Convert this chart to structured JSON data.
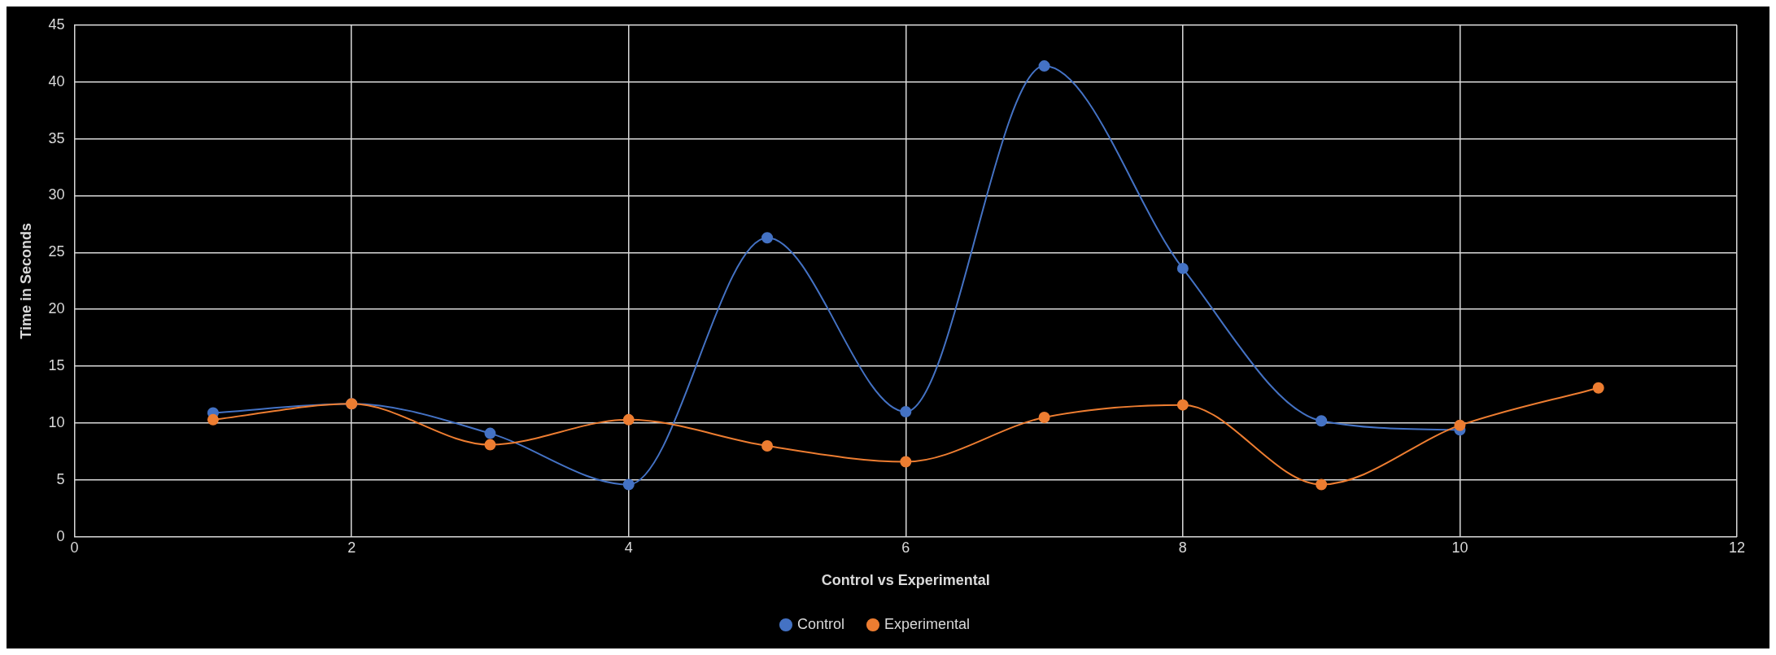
{
  "chart_data": {
    "type": "line",
    "xlabel": "Control vs Experimental",
    "ylabel": "Time in Seconds",
    "x": [
      1,
      2,
      3,
      4,
      5,
      6,
      7,
      8,
      9,
      10,
      11
    ],
    "series": [
      {
        "name": "Control",
        "color": "#4472c4",
        "values": [
          10.9,
          11.7,
          9.1,
          4.6,
          26.3,
          11.0,
          41.4,
          23.6,
          10.2,
          9.4,
          null
        ]
      },
      {
        "name": "Experimental",
        "color": "#ed7d31",
        "values": [
          10.3,
          11.7,
          8.1,
          10.3,
          8.0,
          6.6,
          10.5,
          11.6,
          4.6,
          9.8,
          13.1
        ]
      }
    ],
    "xlim": [
      0,
      12
    ],
    "xticks": [
      0,
      2,
      4,
      6,
      8,
      10,
      12
    ],
    "ylim": [
      0,
      45
    ],
    "yticks": [
      0,
      5,
      10,
      15,
      20,
      25,
      30,
      35,
      40,
      45
    ],
    "grid": true,
    "legend": "bottom",
    "marker": "circle",
    "line_style": "solid"
  }
}
